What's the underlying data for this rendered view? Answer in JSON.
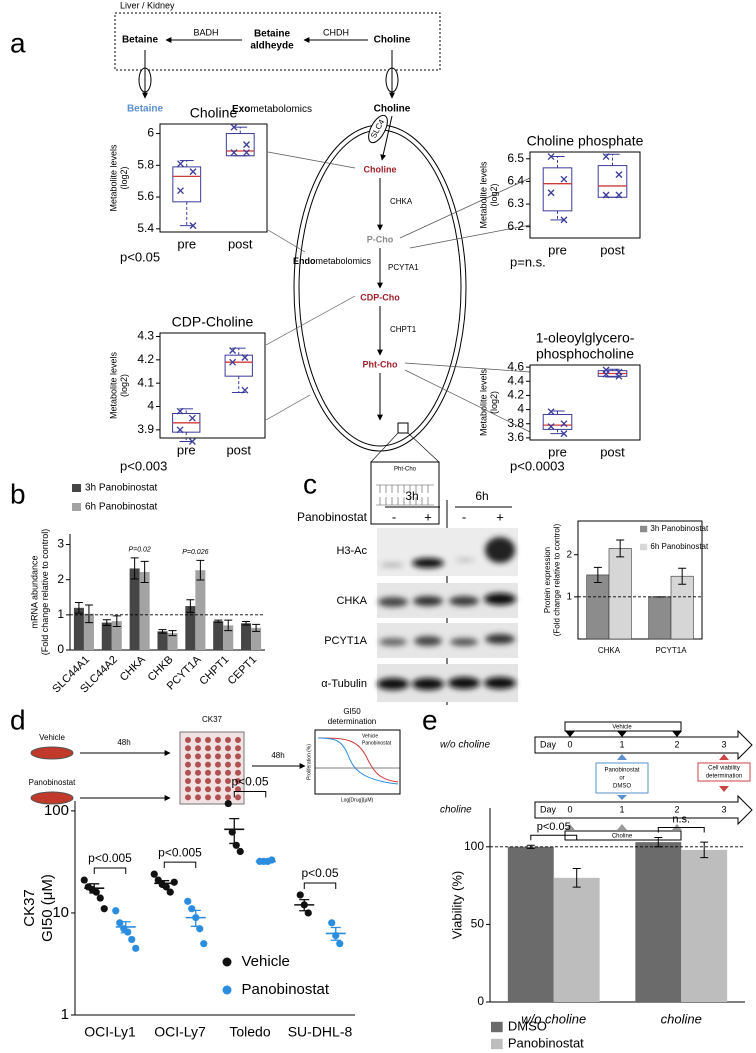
{
  "panel_labels": [
    "a",
    "b",
    "c",
    "d",
    "e"
  ],
  "pathway": {
    "compartment": "Liver / Kidney",
    "betaine": "Betaine",
    "enzyme_badh": "BADH",
    "aldehyde": [
      "Betaine",
      "aldheyde"
    ],
    "enzyme_chdh": "CHDH",
    "choline": "Choline",
    "betaine_out": "Betaine",
    "exo_prefix": "Exo",
    "exo_suffix": "metabolomics",
    "choline_out": "Choline",
    "transporter": "SLC4",
    "cell_choline": "Choline",
    "chka": "CHKA",
    "pcho": "P-Cho",
    "pcyta1": "PCYTA1",
    "endo_prefix": "Endo",
    "endo_suffix": "metabolomics",
    "cdpcho": "CDP-Cho",
    "chpt1": "CHPT1",
    "phtcho": "Pht-Cho",
    "membrane_label": "Pht-Cho"
  },
  "blot": {
    "timepoints": [
      "3h",
      "6h"
    ],
    "treatment": "Panobinostat",
    "signs": [
      "-",
      "+",
      "-",
      "+"
    ],
    "rows": [
      "H3-Ac",
      "CHKA",
      "PCYT1A",
      "α-Tubulin"
    ]
  },
  "assay": {
    "conditions": [
      "Vehicle",
      "Panobinostat"
    ],
    "incubation": [
      "48h",
      "48h"
    ],
    "compound": "CK37",
    "readout": [
      "GI50",
      "determination"
    ],
    "mini_legend": [
      "Vehicle",
      "Panobinostat"
    ],
    "mini_ylabel": "Proliferation (%)",
    "mini_xlabel": "Log[Drug](μM)"
  },
  "timeline": {
    "rows": [
      {
        "label": "w/o choline",
        "day": "Day",
        "days": [
          0,
          1,
          2,
          3
        ],
        "bar": "Vehicle"
      },
      {
        "label": "choline",
        "day": "Day",
        "days": [
          0,
          1,
          2,
          3
        ],
        "bar": "Choline"
      }
    ],
    "treatment": [
      "Panobinostat",
      "or",
      "DMSO"
    ],
    "readout": [
      "Cell viability",
      "determination"
    ]
  },
  "chart_data": [
    {
      "type": "box",
      "title": [
        "Choline"
      ],
      "ylabel": [
        "Metabolite levels",
        "(log2)"
      ],
      "categories": [
        "pre",
        "post"
      ],
      "boxes": [
        {
          "min": 5.42,
          "q1": 5.57,
          "median": 5.73,
          "q3": 5.79,
          "max": 5.83
        },
        {
          "min": 5.86,
          "q1": 5.86,
          "median": 5.89,
          "q3": 6.0,
          "max": 6.04
        }
      ],
      "points": [
        [
          5.81,
          5.76,
          5.64,
          5.42
        ],
        [
          6.04,
          5.93,
          5.88,
          5.88
        ]
      ],
      "ylim": [
        5.38,
        6.06
      ],
      "yticks": [
        5.4,
        5.6,
        5.8,
        6
      ],
      "annotation": "p<0.05",
      "color": "#3b3b9a",
      "median_color": "#d23a3a"
    },
    {
      "type": "box",
      "title": [
        "Choline phosphate"
      ],
      "ylabel": [
        "Metabolite levels",
        "(log2)"
      ],
      "categories": [
        "pre",
        "post"
      ],
      "boxes": [
        {
          "min": 6.23,
          "q1": 6.27,
          "median": 6.39,
          "q3": 6.46,
          "max": 6.51
        },
        {
          "min": 6.33,
          "q1": 6.33,
          "median": 6.38,
          "q3": 6.47,
          "max": 6.52
        }
      ],
      "points": [
        [
          6.51,
          6.41,
          6.35,
          6.23
        ],
        [
          6.51,
          6.43,
          6.34,
          6.34
        ]
      ],
      "ylim": [
        6.15,
        6.53
      ],
      "yticks": [
        6.2,
        6.3,
        6.4,
        6.5
      ],
      "annotation": "p=n.s.",
      "color": "#3b3b9a",
      "median_color": "#d23a3a"
    },
    {
      "type": "box",
      "title": [
        "CDP-Choline"
      ],
      "ylabel": [
        "Metabolite levels",
        "(log2)"
      ],
      "categories": [
        "pre",
        "post"
      ],
      "boxes": [
        {
          "min": 3.85,
          "q1": 3.89,
          "median": 3.93,
          "q3": 3.97,
          "max": 3.99
        },
        {
          "min": 4.06,
          "q1": 4.13,
          "median": 4.19,
          "q3": 4.22,
          "max": 4.25
        }
      ],
      "points": [
        [
          3.98,
          3.95,
          3.9,
          3.85
        ],
        [
          4.24,
          4.21,
          4.19,
          4.07
        ]
      ],
      "ylim": [
        3.865,
        4.315
      ],
      "yticks": [
        3.9,
        4,
        4.1,
        4.2,
        4.3
      ],
      "annotation": "p<0.003",
      "color": "#3b3b9a",
      "median_color": "#d23a3a"
    },
    {
      "type": "box",
      "title": [
        "1-oleoylglycero-",
        "phosphocholine"
      ],
      "ylabel": [
        "Metabolite levels",
        "(log2)"
      ],
      "categories": [
        "pre",
        "post"
      ],
      "boxes": [
        {
          "min": 3.66,
          "q1": 3.72,
          "median": 3.78,
          "q3": 3.93,
          "max": 3.98
        },
        {
          "min": 4.46,
          "q1": 4.47,
          "median": 4.51,
          "q3": 4.55,
          "max": 4.57
        }
      ],
      "points": [
        [
          3.97,
          3.8,
          3.76,
          3.66
        ],
        [
          4.56,
          4.53,
          4.5,
          4.47
        ]
      ],
      "ylim": [
        3.57,
        4.63
      ],
      "yticks": [
        3.6,
        3.8,
        4,
        4.2,
        4.4,
        4.6
      ],
      "annotation": "p<0.0003",
      "color": "#3b3b9a",
      "median_color": "#d23a3a"
    },
    {
      "type": "bar",
      "ylabel": [
        "mRNA abundance",
        "(Fold change relative to control)"
      ],
      "categories": [
        "SLC44A1",
        "SLC44A2",
        "CHKA",
        "CHKB",
        "PCYT1A",
        "CHPT1",
        "CEPT1"
      ],
      "series": [
        {
          "name": "3h Panobinostat",
          "color": "#464646",
          "values": [
            1.2,
            0.78,
            2.32,
            0.53,
            1.25,
            0.82,
            0.76
          ],
          "errors": [
            0.15,
            0.08,
            0.3,
            0.05,
            0.18,
            0.03,
            0.05
          ]
        },
        {
          "name": "6h Panobinostat",
          "color": "#a3a3a3",
          "values": [
            1.03,
            0.82,
            2.22,
            0.48,
            2.27,
            0.7,
            0.63
          ],
          "errors": [
            0.25,
            0.15,
            0.3,
            0.07,
            0.28,
            0.15,
            0.1
          ]
        }
      ],
      "annotations": [
        null,
        null,
        "P=0.02",
        null,
        "P=0.026",
        null,
        null
      ],
      "reference_line": 1,
      "ylim": [
        0,
        3.3
      ],
      "yticks": [
        0,
        1,
        2,
        3
      ]
    },
    {
      "type": "bar",
      "ylabel": [
        "Protein expression",
        "(Fold change relative to control)"
      ],
      "categories": [
        "CHKA",
        "PCYT1A"
      ],
      "series": [
        {
          "name": "3h Panobinostat",
          "color": "#8c8c8c",
          "values": [
            1.52,
            1.0
          ],
          "errors": [
            0.18,
            0
          ]
        },
        {
          "name": "6h Panobinostat",
          "color": "#d6d6d6",
          "values": [
            2.15,
            1.49
          ],
          "errors": [
            0.2,
            0.19
          ]
        }
      ],
      "reference_line": 1,
      "ylim": [
        0,
        2.8
      ],
      "yticks": [
        1,
        2
      ]
    },
    {
      "type": "strip",
      "ylabel": [
        "CK37",
        "GI50 (μM)"
      ],
      "log_scale": true,
      "categories": [
        "OCI-Ly1",
        "OCI-Ly7",
        "Toledo",
        "SU-DHL-8"
      ],
      "series": [
        {
          "name": "Vehicle",
          "color": "#111111",
          "points": [
            [
              21,
              18,
              17,
              16,
              14,
              11
            ],
            [
              24,
              21,
              19,
              18,
              16,
              20
            ],
            [
              118,
              62,
              46,
              40
            ],
            [
              15,
              12,
              10
            ]
          ],
          "mean": [
            17.5,
            19.5,
            66,
            12
          ],
          "sem": [
            1.8,
            1.2,
            18,
            1.5
          ]
        },
        {
          "name": "Panobinostat",
          "color": "#2b8de0",
          "points": [
            [
              10.5,
              8,
              7,
              6.5,
              5.5,
              4.5
            ],
            [
              13,
              11,
              9,
              7,
              5
            ],
            [
              32,
              32,
              32,
              33
            ],
            [
              8,
              6,
              5
            ]
          ],
          "mean": [
            7.3,
            9,
            32,
            6.3
          ],
          "sem": [
            0.9,
            1.6,
            0.3,
            0.9
          ]
        }
      ],
      "annotations": [
        "p<0.005",
        "p<0.005",
        "p<0.05",
        "p<0.05"
      ],
      "ylim": [
        1,
        125
      ],
      "yticks": [
        1,
        10,
        100
      ]
    },
    {
      "type": "bar",
      "ylabel": [
        "Viability (%)"
      ],
      "categories": [
        "w/o choline",
        "choline"
      ],
      "series": [
        {
          "name": "DMSO",
          "color": "#6b6b6b",
          "values": [
            100,
            103
          ],
          "errors": [
            1,
            3
          ]
        },
        {
          "name": "Panobinostat",
          "color": "#bdbdbd",
          "values": [
            80,
            98
          ],
          "errors": [
            6,
            5
          ]
        }
      ],
      "annotations": [
        "p<0.05",
        "n.s."
      ],
      "reference_line": 100,
      "ylim": [
        0,
        125
      ],
      "yticks": [
        0,
        50,
        100
      ]
    }
  ]
}
